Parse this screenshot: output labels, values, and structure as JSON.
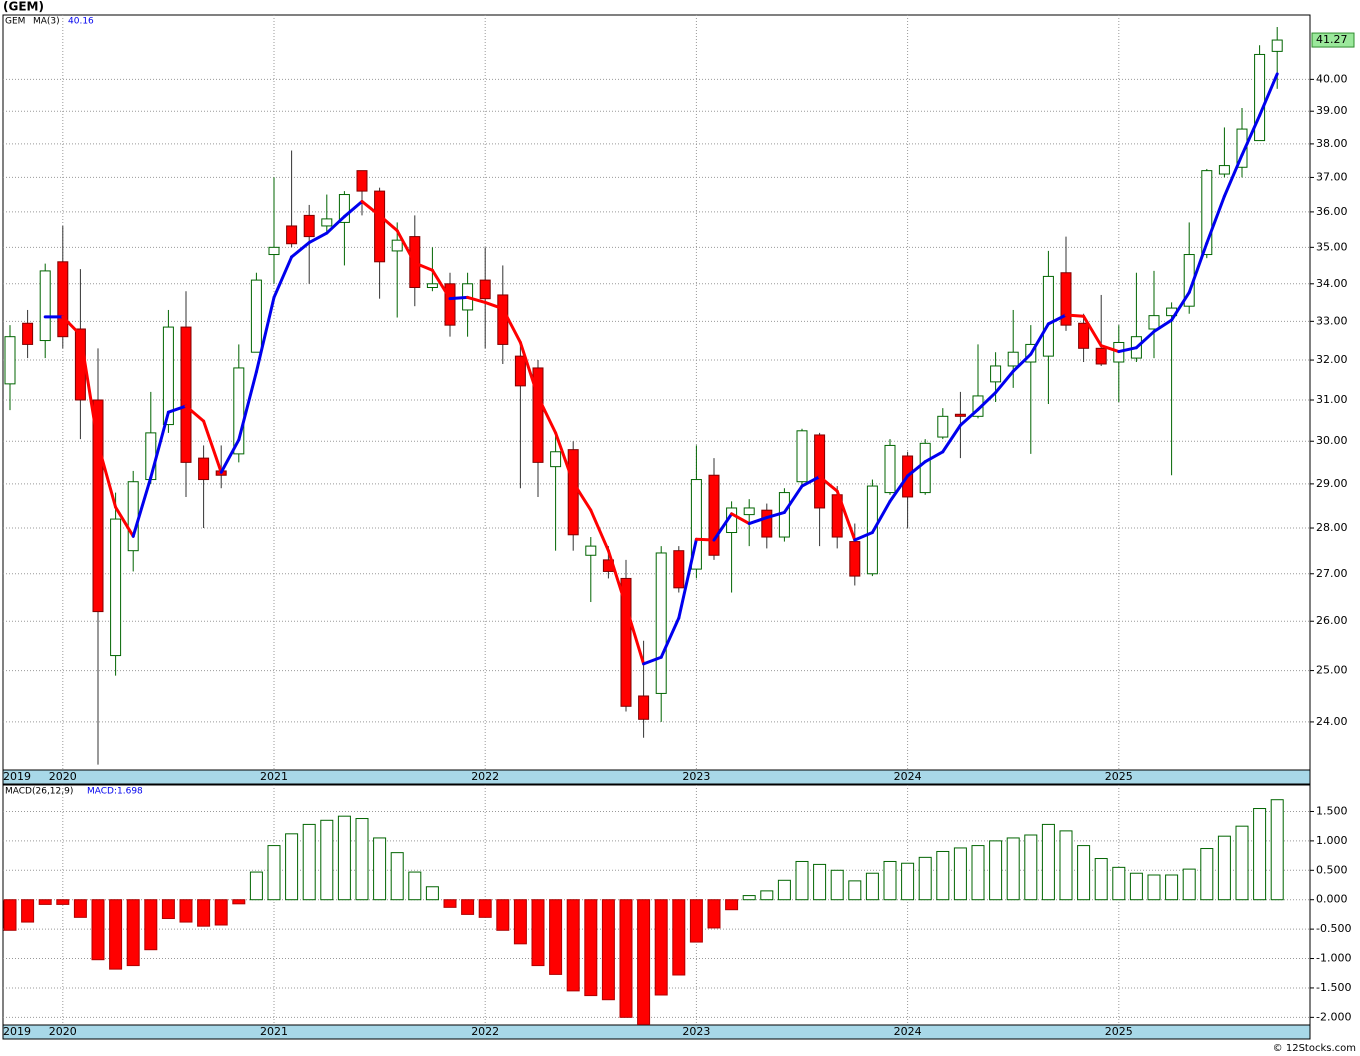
{
  "chart_data": [
    {
      "type": "candlestick",
      "title": "(GEM)",
      "symbol": "GEM",
      "categories": [
        "2019",
        null,
        null,
        "2020",
        null,
        null,
        null,
        null,
        null,
        null,
        null,
        null,
        null,
        null,
        null,
        "2021",
        null,
        null,
        null,
        null,
        null,
        null,
        null,
        null,
        null,
        null,
        null,
        "2022",
        null,
        null,
        null,
        null,
        null,
        null,
        null,
        null,
        null,
        null,
        null,
        "2023",
        null,
        null,
        null,
        null,
        null,
        null,
        null,
        null,
        null,
        null,
        null,
        "2024",
        null,
        null,
        null,
        null,
        null,
        null,
        null,
        null,
        null,
        null,
        null,
        "2025",
        null,
        null,
        null,
        null,
        null,
        null,
        null,
        null,
        null
      ],
      "open": [
        31.4,
        32.95,
        32.5,
        34.6,
        32.8,
        31.0,
        25.3,
        27.5,
        29.1,
        30.4,
        32.85,
        29.6,
        29.3,
        29.7,
        32.2,
        34.8,
        35.6,
        35.9,
        35.6,
        35.7,
        37.2,
        36.6,
        34.9,
        35.3,
        33.9,
        34.0,
        33.3,
        34.1,
        33.7,
        32.1,
        31.8,
        29.4,
        29.8,
        27.4,
        27.3,
        26.9,
        24.5,
        24.55,
        27.5,
        27.1,
        29.2,
        27.9,
        28.3,
        28.4,
        27.8,
        29.05,
        30.15,
        28.75,
        27.7,
        27.0,
        28.8,
        29.65,
        28.8,
        30.1,
        30.65,
        30.6,
        31.45,
        31.85,
        31.95,
        32.1,
        34.3,
        32.95,
        32.3,
        31.95,
        32.05,
        32.8,
        33.15,
        33.4,
        34.8,
        37.1,
        37.3,
        38.1,
        40.9
      ],
      "high": [
        32.9,
        33.3,
        34.55,
        35.6,
        34.4,
        32.3,
        28.8,
        29.3,
        31.2,
        33.3,
        33.8,
        29.9,
        29.9,
        32.4,
        34.3,
        37.0,
        37.8,
        36.2,
        36.5,
        36.6,
        37.2,
        36.7,
        35.7,
        35.9,
        35.0,
        34.3,
        34.3,
        35.0,
        34.5,
        32.5,
        32.0,
        30.2,
        30.0,
        27.8,
        27.6,
        27.3,
        25.6,
        27.6,
        27.6,
        29.9,
        29.6,
        28.6,
        28.65,
        28.55,
        28.9,
        30.3,
        30.2,
        28.95,
        28.1,
        29.1,
        30.05,
        29.75,
        30.05,
        30.8,
        31.2,
        32.4,
        32.2,
        33.3,
        32.9,
        34.9,
        35.3,
        33.2,
        33.7,
        32.9,
        34.3,
        34.35,
        33.5,
        35.7,
        37.25,
        38.5,
        39.1,
        41.1,
        41.7
      ],
      "low": [
        30.75,
        32.05,
        32.05,
        32.3,
        30.05,
        23.2,
        24.9,
        27.05,
        29.0,
        30.2,
        28.7,
        28.0,
        28.9,
        29.5,
        32.2,
        34.0,
        35.0,
        34.0,
        35.4,
        34.5,
        35.9,
        33.6,
        33.1,
        33.4,
        33.8,
        32.6,
        32.6,
        32.3,
        31.9,
        28.9,
        28.7,
        27.5,
        27.5,
        26.4,
        26.9,
        24.2,
        23.7,
        24.0,
        26.6,
        26.9,
        27.3,
        26.6,
        27.6,
        27.55,
        27.7,
        28.9,
        27.6,
        27.55,
        26.75,
        26.95,
        28.75,
        28.0,
        28.75,
        30.05,
        29.6,
        30.55,
        30.95,
        31.3,
        29.7,
        30.9,
        32.75,
        31.95,
        31.85,
        30.95,
        31.95,
        32.05,
        29.2,
        33.2,
        34.7,
        37.0,
        37.0,
        38.1,
        39.7
      ],
      "close": [
        32.6,
        32.4,
        34.35,
        32.6,
        31.0,
        26.2,
        28.2,
        29.05,
        30.2,
        32.85,
        29.5,
        29.1,
        29.2,
        31.8,
        34.1,
        35.0,
        35.1,
        35.3,
        35.8,
        36.5,
        36.6,
        34.6,
        35.2,
        33.9,
        34.0,
        32.9,
        34.0,
        33.6,
        32.4,
        31.35,
        29.5,
        29.75,
        27.85,
        27.6,
        27.05,
        24.3,
        24.05,
        27.45,
        26.7,
        29.1,
        27.4,
        28.45,
        28.45,
        27.8,
        28.8,
        30.25,
        28.45,
        27.8,
        26.95,
        28.95,
        29.9,
        28.7,
        29.95,
        30.6,
        30.6,
        31.1,
        31.85,
        32.2,
        32.4,
        34.2,
        32.9,
        32.3,
        31.9,
        32.45,
        32.6,
        33.15,
        33.35,
        34.8,
        37.2,
        37.35,
        38.45,
        40.8,
        41.27
      ],
      "up_color": "#006400",
      "down_color": "#ff0000",
      "ma": {
        "name": "MA(3)",
        "value": 40.16,
        "up_color": "#0000ee",
        "down_color": "#ff0000"
      },
      "log_scale": true,
      "grid": true,
      "ylim": [
        23.1,
        42.1
      ],
      "yticks": [
        {
          "value": 24,
          "label": "24.00"
        },
        {
          "value": 25,
          "label": "25.00"
        },
        {
          "value": 26,
          "label": "26.00"
        },
        {
          "value": 27,
          "label": "27.00"
        },
        {
          "value": 28,
          "label": "28.00"
        },
        {
          "value": 29,
          "label": "29.00"
        },
        {
          "value": 30,
          "label": "30.00"
        },
        {
          "value": 31,
          "label": "31.00"
        },
        {
          "value": 32,
          "label": "32.00"
        },
        {
          "value": 33,
          "label": "33.00"
        },
        {
          "value": 34,
          "label": "34.00"
        },
        {
          "value": 35,
          "label": "35.00"
        },
        {
          "value": 36,
          "label": "36.00"
        },
        {
          "value": 37,
          "label": "37.00"
        },
        {
          "value": 38,
          "label": "38.00"
        },
        {
          "value": 39,
          "label": "39.00"
        },
        {
          "value": 40,
          "label": "40.00"
        }
      ]
    },
    {
      "type": "bar",
      "name": "MACD(26,12,9)",
      "value_label": "MACD:1.698",
      "values": [
        -0.52,
        -0.38,
        -0.08,
        -0.08,
        -0.3,
        -1.02,
        -1.18,
        -1.12,
        -0.85,
        -0.32,
        -0.38,
        -0.45,
        -0.43,
        -0.07,
        0.47,
        0.92,
        1.12,
        1.28,
        1.35,
        1.42,
        1.38,
        1.05,
        0.8,
        0.47,
        0.22,
        -0.13,
        -0.25,
        -0.3,
        -0.52,
        -0.75,
        -1.12,
        -1.27,
        -1.55,
        -1.63,
        -1.7,
        -2.0,
        -2.12,
        -1.62,
        -1.28,
        -0.72,
        -0.48,
        -0.17,
        0.07,
        0.15,
        0.33,
        0.65,
        0.6,
        0.5,
        0.32,
        0.45,
        0.65,
        0.62,
        0.72,
        0.82,
        0.88,
        0.92,
        1.0,
        1.05,
        1.1,
        1.28,
        1.17,
        0.92,
        0.7,
        0.55,
        0.45,
        0.42,
        0.42,
        0.52,
        0.87,
        1.08,
        1.25,
        1.55,
        1.7
      ],
      "up_color": "#006400",
      "down_color": "#ff0000",
      "grid": true,
      "ylim": [
        -2.13,
        1.95
      ],
      "yticks": [
        {
          "value": 1.5,
          "label": "1.500"
        },
        {
          "value": 1,
          "label": "1.000"
        },
        {
          "value": 0.5,
          "label": "0.500"
        },
        {
          "value": 0,
          "label": "0.000"
        },
        {
          "value": -0.5,
          "label": "-0.500"
        },
        {
          "value": -1,
          "label": "-1.000"
        },
        {
          "value": -1.5,
          "label": "-1.500"
        },
        {
          "value": -2,
          "label": "-2.000"
        }
      ]
    }
  ],
  "footer": "© 12Stocks.com"
}
